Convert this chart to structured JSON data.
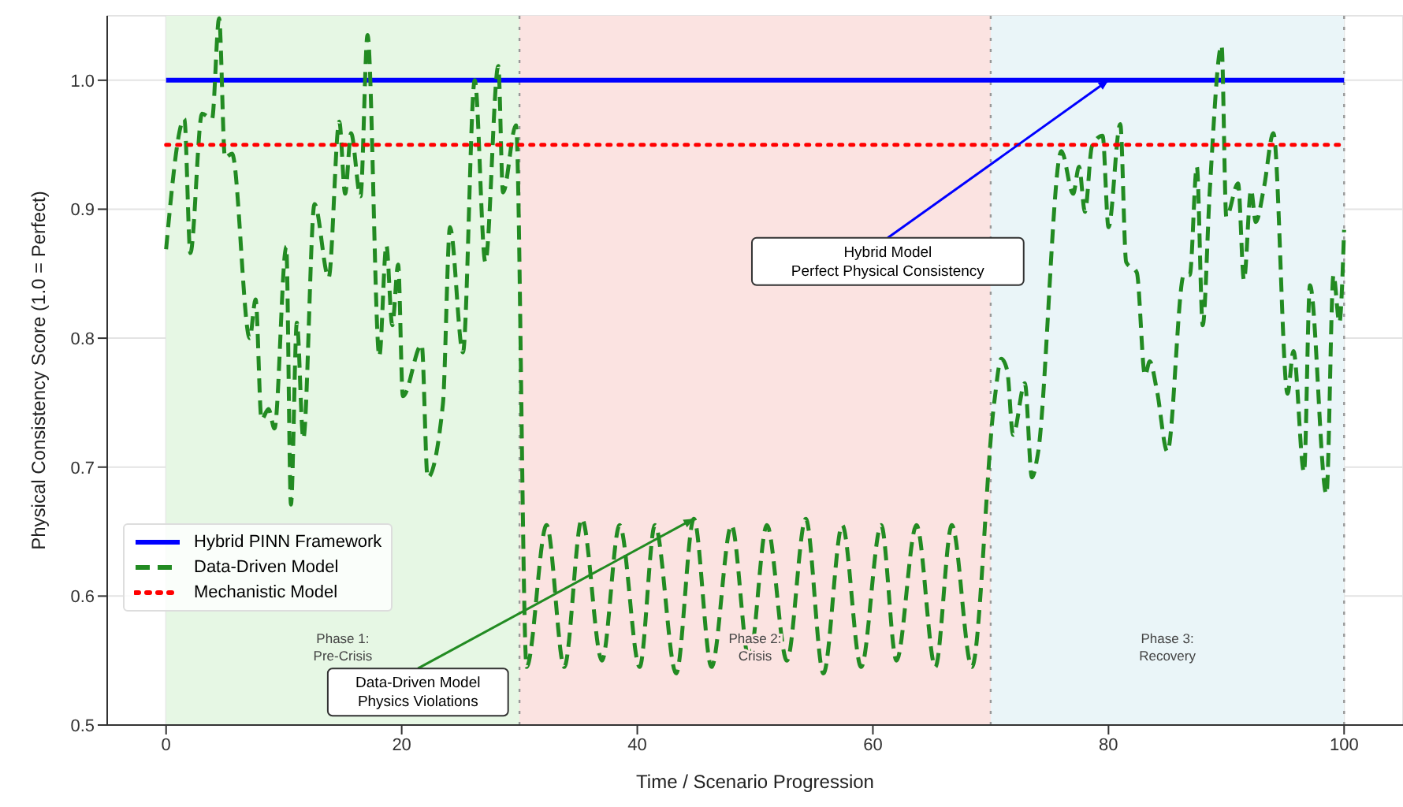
{
  "chart_data": {
    "type": "line",
    "xlabel": "Time / Scenario Progression",
    "ylabel": "Physical Consistency Score (1.0 = Perfect)",
    "xlim": [
      -5,
      105
    ],
    "ylim": [
      0.5,
      1.05
    ],
    "xticks": [
      0,
      20,
      40,
      60,
      80,
      100
    ],
    "yticks": [
      0.5,
      0.6,
      0.7,
      0.8,
      0.9,
      {
        "value": 1.0,
        "label": "1.0"
      }
    ],
    "grid": true,
    "legend": "bottom left",
    "marker": "none",
    "series": [
      {
        "name": "Hybrid PINN Framework",
        "color": "#0000ff",
        "line_style": "solid",
        "x": [
          0,
          100
        ],
        "values": [
          1.0,
          1.0
        ]
      },
      {
        "name": "Data-Driven Model",
        "color": "#228b22",
        "line_style": "dashed",
        "x": [
          0,
          1.55,
          2.06,
          3.05,
          3.9,
          4.5,
          5.0,
          5.6,
          7.1,
          7.6,
          8.1,
          8.7,
          9.2,
          10.2,
          10.6,
          11.1,
          11.65,
          12.6,
          13.8,
          14.7,
          15.2,
          15.7,
          16.5,
          17.1,
          18.1,
          18.7,
          19.2,
          19.7,
          20.1,
          21.7,
          22.2,
          23.5,
          24.1,
          25.2,
          26.2,
          27.1,
          28.2,
          28.6,
          29.7,
          30.6,
          32.3,
          33.8,
          35.3,
          37.0,
          38.5,
          40.2,
          41.5,
          43.3,
          44.8,
          46.3,
          48.0,
          49.5,
          51.0,
          52.7,
          54.3,
          55.8,
          57.4,
          59.0,
          60.7,
          62.0,
          63.7,
          65.3,
          66.7,
          68.4,
          70.3,
          70.9,
          71.4,
          71.9,
          72.9,
          73.5,
          74.0,
          76.0,
          77.0,
          77.5,
          78.0,
          78.6,
          79.5,
          80.0,
          81.0,
          81.5,
          82.4,
          83.1,
          83.5,
          84.1,
          85.0,
          86.4,
          86.9,
          87.5,
          88.0,
          88.6,
          89.6,
          90.0,
          91.0,
          91.5,
          92.1,
          92.5,
          93.2,
          94.0,
          95.2,
          95.7,
          96.6,
          97.1,
          98.5,
          99.1,
          99.6,
          100
        ],
        "values": [
          0.869,
          0.97,
          0.866,
          0.974,
          0.97,
          1.048,
          0.94,
          0.943,
          0.8,
          0.83,
          0.737,
          0.745,
          0.73,
          0.871,
          0.671,
          0.812,
          0.722,
          0.904,
          0.847,
          0.968,
          0.912,
          0.959,
          0.91,
          1.035,
          0.786,
          0.872,
          0.81,
          0.857,
          0.755,
          0.795,
          0.692,
          0.749,
          0.886,
          0.789,
          1.0,
          0.859,
          1.011,
          0.913,
          0.965,
          0.545,
          0.655,
          0.545,
          0.66,
          0.55,
          0.655,
          0.545,
          0.655,
          0.54,
          0.66,
          0.545,
          0.655,
          0.55,
          0.655,
          0.55,
          0.66,
          0.54,
          0.655,
          0.545,
          0.655,
          0.55,
          0.655,
          0.545,
          0.655,
          0.545,
          0.75,
          0.784,
          0.775,
          0.725,
          0.765,
          0.692,
          0.71,
          0.945,
          0.912,
          0.933,
          0.898,
          0.949,
          0.957,
          0.886,
          0.966,
          0.859,
          0.851,
          0.771,
          0.782,
          0.76,
          0.712,
          0.849,
          0.849,
          0.933,
          0.81,
          0.915,
          1.027,
          0.894,
          0.92,
          0.845,
          0.915,
          0.89,
          0.917,
          0.959,
          0.757,
          0.79,
          0.696,
          0.841,
          0.679,
          0.849,
          0.812,
          0.884
        ]
      },
      {
        "name": "Mechanistic Model",
        "color": "#ff0000",
        "line_style": "dotted",
        "x": [
          0,
          100
        ],
        "values": [
          0.95,
          0.95
        ]
      }
    ],
    "bands": [
      {
        "axis": "x",
        "from": 0,
        "to": 30,
        "label": "Phase 1:\nPre-Crisis",
        "color": "#e6f7e4"
      },
      {
        "axis": "x",
        "from": 30,
        "to": 70,
        "label": "Phase 2:\nCrisis",
        "color": "#fbe3e1"
      },
      {
        "axis": "x",
        "from": 70,
        "to": 100,
        "label": "Phase 3:\nRecovery",
        "color": "#eaf5f8"
      }
    ],
    "ref_lines": [
      {
        "axis": "x",
        "value": 30,
        "color": "#999999",
        "line_style": "dotted"
      },
      {
        "axis": "x",
        "value": 70,
        "color": "#999999",
        "line_style": "dotted"
      },
      {
        "axis": "x",
        "value": 100,
        "color": "#999999",
        "line_style": "dotted"
      }
    ],
    "annotations": [
      {
        "text": "Hybrid Model\nPerfect Physical Consistency",
        "x": 80,
        "y": 1.0
      },
      {
        "text": "Data-Driven Model\nPhysics Violations",
        "x": 44.8,
        "y": 0.66
      }
    ]
  }
}
